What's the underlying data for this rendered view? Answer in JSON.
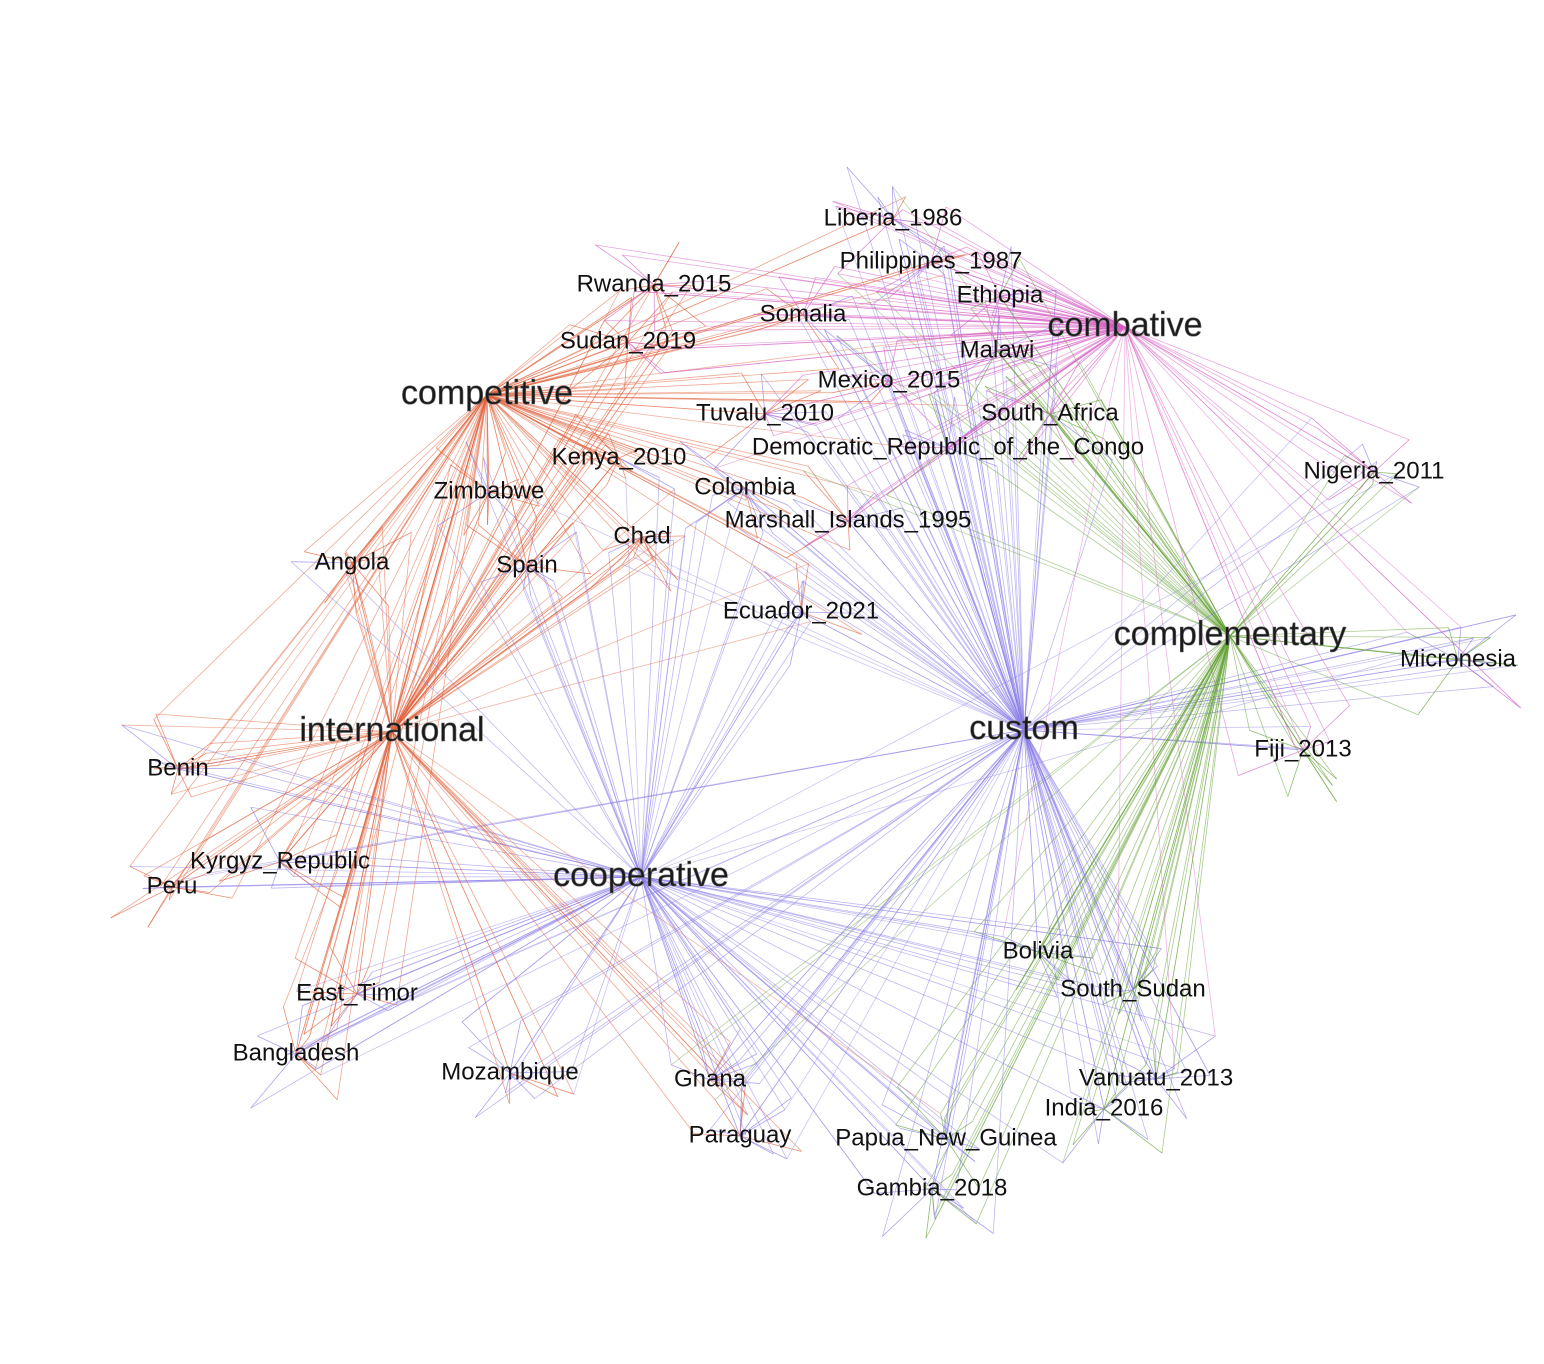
{
  "categories": [
    "competitive",
    "combative",
    "international",
    "custom",
    "complementary",
    "cooperative"
  ],
  "cases": [
    "Liberia_1986",
    "Philippines_1987",
    "Rwanda_2015",
    "Ethiopia",
    "Somalia",
    "Sudan_2019",
    "Malawi",
    "Mexico_2015",
    "Tuvalu_2010",
    "South_Africa",
    "Democratic_Republic_of_the_Congo",
    "Kenya_2010",
    "Nigeria_2011",
    "Colombia",
    "Zimbabwe",
    "Marshall_Islands_1995",
    "Chad",
    "Angola",
    "Spain",
    "Ecuador_2021",
    "Micronesia",
    "Benin",
    "Fiji_2013",
    "Kyrgyz_Republic",
    "Peru",
    "Bolivia",
    "East_Timor",
    "South_Sudan",
    "Bangladesh",
    "Mozambique",
    "Ghana",
    "Vanuatu_2013",
    "India_2016",
    "Paraguay",
    "Papua_New_Guinea",
    "Gambia_2018"
  ]
}
